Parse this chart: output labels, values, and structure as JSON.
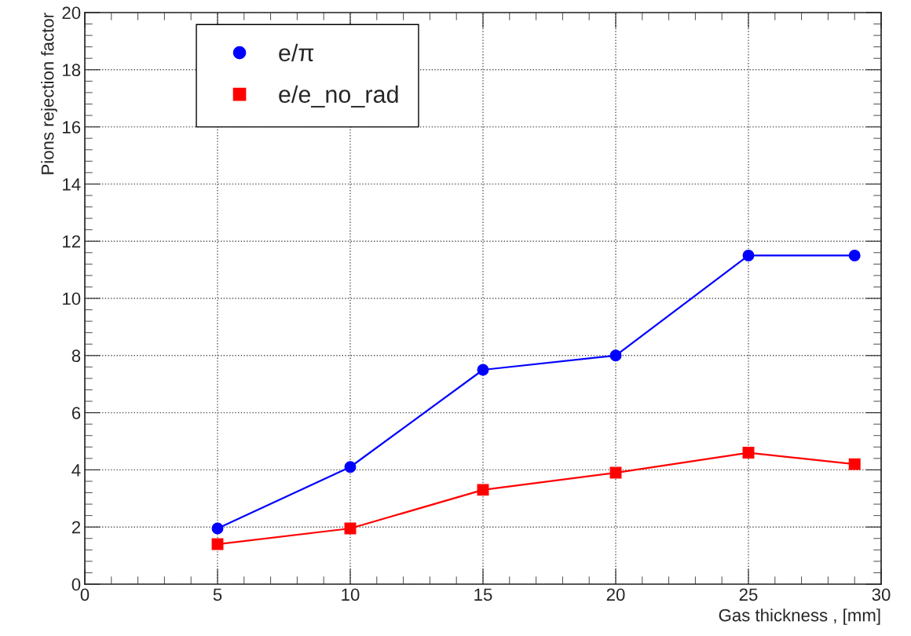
{
  "chart_data": {
    "type": "line",
    "xlabel": "Gas thickness , [mm]",
    "ylabel": "Pions rejection factor",
    "xlim": [
      0,
      30
    ],
    "ylim": [
      0,
      20
    ],
    "xticks": [
      0,
      5,
      10,
      15,
      20,
      25,
      30
    ],
    "yticks": [
      0,
      2,
      4,
      6,
      8,
      10,
      12,
      14,
      16,
      18,
      20
    ],
    "grid": true,
    "legend": "top left",
    "line_style": "solid",
    "series": [
      {
        "name": "e/π",
        "color": "#0000ff",
        "marker": "circle",
        "x": [
          5,
          10,
          15,
          20,
          25,
          29
        ],
        "values": [
          1.95,
          4.1,
          7.5,
          8.0,
          11.5,
          11.5
        ]
      },
      {
        "name": "e/e_no_rad",
        "color": "#ff0000",
        "marker": "square",
        "x": [
          5,
          10,
          15,
          20,
          25,
          29
        ],
        "values": [
          1.4,
          1.95,
          3.3,
          3.9,
          4.6,
          4.2
        ]
      }
    ]
  }
}
